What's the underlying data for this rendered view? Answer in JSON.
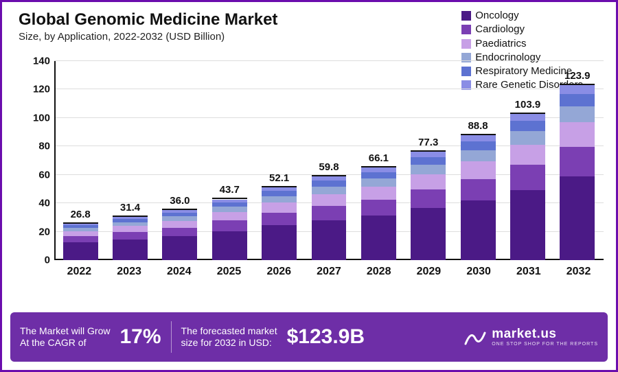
{
  "title": "Global Genomic Medicine Market",
  "subtitle": "Size, by Application, 2022-2032 (USD Billion)",
  "chart": {
    "type": "stacked-bar",
    "background_color": "#ffffff",
    "grid_color": "#dddddd",
    "axis_color": "#111111",
    "title_fontsize": 24,
    "label_fontsize": 15,
    "ylim": [
      0,
      140
    ],
    "ytick_step": 20,
    "yticks": [
      0,
      20,
      40,
      60,
      80,
      100,
      120,
      140
    ],
    "categories": [
      "2022",
      "2023",
      "2024",
      "2025",
      "2026",
      "2027",
      "2028",
      "2029",
      "2030",
      "2031",
      "2032"
    ],
    "totals": [
      26.8,
      31.4,
      36.0,
      43.7,
      52.1,
      59.8,
      66.1,
      77.3,
      88.8,
      103.9,
      123.9
    ],
    "totals_display": [
      "26.8",
      "31.4",
      "36.0",
      "43.7",
      "52.1",
      "59.8",
      "66.1",
      "77.3",
      "88.8",
      "103.9",
      "123.9"
    ],
    "series": [
      {
        "name": "Oncology",
        "color": "#4b1a86"
      },
      {
        "name": "Cardiology",
        "color": "#7b3fb3"
      },
      {
        "name": "Paediatrics",
        "color": "#c7a0e6"
      },
      {
        "name": "Endocrinology",
        "color": "#94a7d6"
      },
      {
        "name": "Respiratory Medicine",
        "color": "#5d72d1"
      },
      {
        "name": "Rare Genetic Disorders",
        "color": "#8a8de5"
      }
    ],
    "segment_fractions": [
      0.48,
      0.17,
      0.14,
      0.09,
      0.07,
      0.05
    ],
    "bar_width": 0.8
  },
  "footer": {
    "bg_color": "#6e2ea7",
    "cagr_label_l1": "The Market will Grow",
    "cagr_label_l2": "At the CAGR of",
    "cagr_value": "17%",
    "forecast_label_l1": "The forecasted market",
    "forecast_label_l2": "size for 2032 in USD:",
    "forecast_value": "$123.9B",
    "brand_name": "market.us",
    "brand_sub": "ONE STOP SHOP FOR THE REPORTS"
  }
}
